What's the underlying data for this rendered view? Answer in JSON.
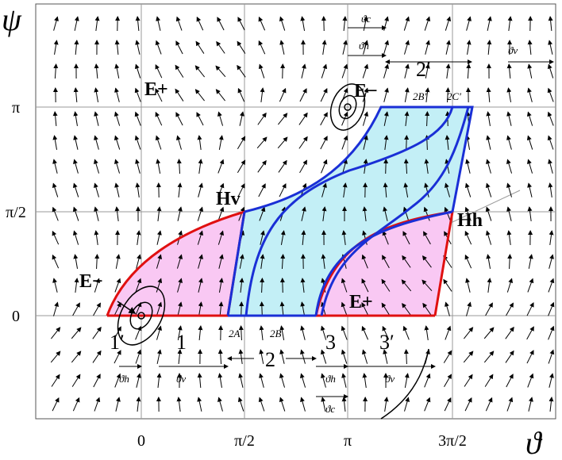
{
  "axes": {
    "y_label": "ψ",
    "x_label": "ϑ",
    "x_ticks": [
      "0",
      "π/2",
      "π",
      "3π/2"
    ],
    "y_ticks": [
      "0",
      "π/2",
      "π"
    ]
  },
  "points": {
    "e_plus_top": "E+",
    "e_minus_top": "E−",
    "e_minus_left": "E−",
    "e_plus_right": "E+",
    "h_v": "Hv",
    "h_h": "Hh"
  },
  "regions": {
    "r1p": "1′",
    "r1": "1",
    "r2": "2",
    "r3": "3",
    "r3p": "3′",
    "r2p": "2′"
  },
  "markers": {
    "a2": "2A",
    "b2": "2B",
    "b2p": "2B′",
    "c2p": "2C′"
  },
  "angles": {
    "c_top": "ϑc",
    "h_top": "ϑh",
    "v_top": "ϑv",
    "h_left": "ϑh",
    "v_left": "ϑv",
    "h_mid": "ϑh",
    "c_mid": "ϑc",
    "v_right": "ϑv"
  }
}
